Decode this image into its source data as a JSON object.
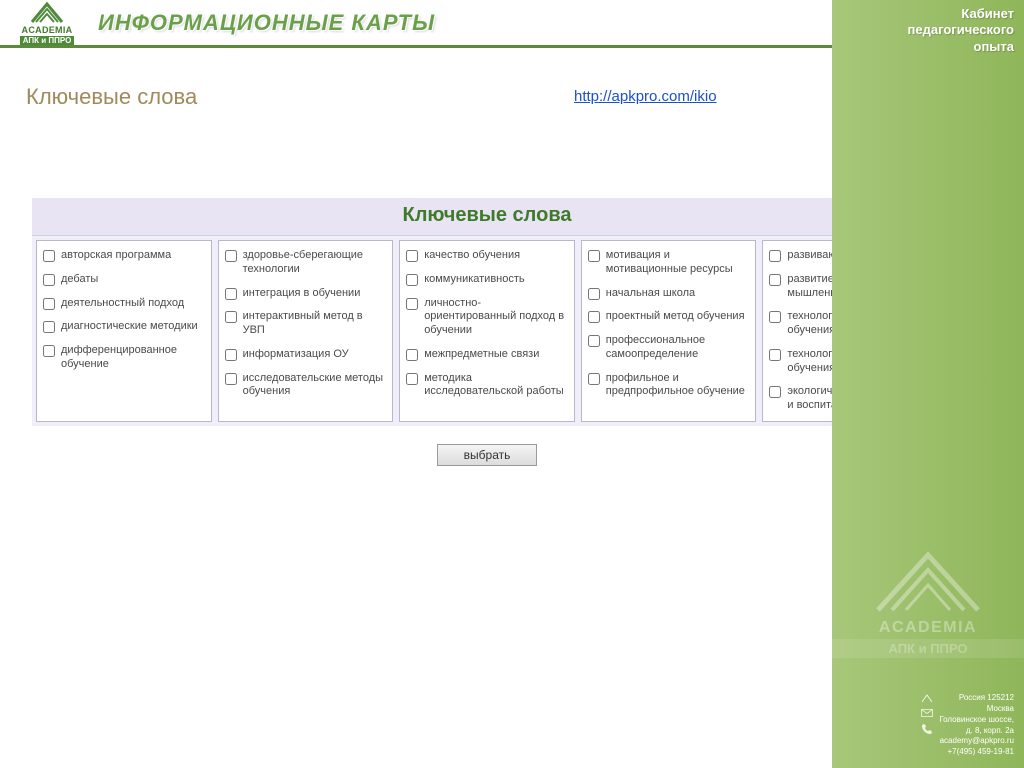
{
  "header": {
    "logo_name": "ACADEMIA",
    "logo_sub": "АПК и ППРО",
    "title": "ИНФОРМАЦИОННЫЕ КАРТЫ"
  },
  "sidebar": {
    "title_line1": "Кабинет",
    "title_line2": "педагогического",
    "title_line3": "опыта",
    "watermark_name": "ACADEMIA",
    "watermark_sub": "АПК и ППРО",
    "address": {
      "line1": "Россия   125212",
      "line2": "Москва",
      "line3": "Головинское шоссе,",
      "line4": "д. 8, корп. 2а",
      "line5": "academy@apkpro.ru",
      "line6": "+7(495) 459-19-81"
    }
  },
  "main": {
    "section_title": "Ключевые слова",
    "link_text": "http://apkpro.com/ikio",
    "panel_title": "Ключевые слова",
    "select_button": "выбрать",
    "columns": [
      [
        "авторская программа",
        "дебаты",
        "деятельностный подход",
        "диагностические методики",
        "дифференцированное обучение"
      ],
      [
        "здоровье-сберегающие технологии",
        "интеграция в обучении",
        "интерактивный метод в УВП",
        "информатизация ОУ",
        "исследовательские методы обучения"
      ],
      [
        "качество обучения",
        "коммуникативность",
        "личностно-ориентированный подход в обучении",
        "межпредметные связи",
        "методика исследовательской работы"
      ],
      [
        "мотивация и мотивационные ресурсы",
        "начальная школа",
        "проектный метод обучения",
        "профессиональное самоопределение",
        "профильное и предпрофильное обучение"
      ],
      [
        "развивающее обучение",
        "развитие критического мышления",
        "технологии активного обучения",
        "технологии проблемного обучения",
        "экологическое образование и воспитание"
      ]
    ]
  },
  "colors": {
    "green_dark": "#3f7a2a",
    "green_mid": "#6aa04a",
    "sidebar_from": "#a8c77a",
    "sidebar_to": "#8fb65a",
    "section_title": "#a08a5a",
    "link": "#1a4fd0",
    "panel_bg": "#f0eef8"
  }
}
